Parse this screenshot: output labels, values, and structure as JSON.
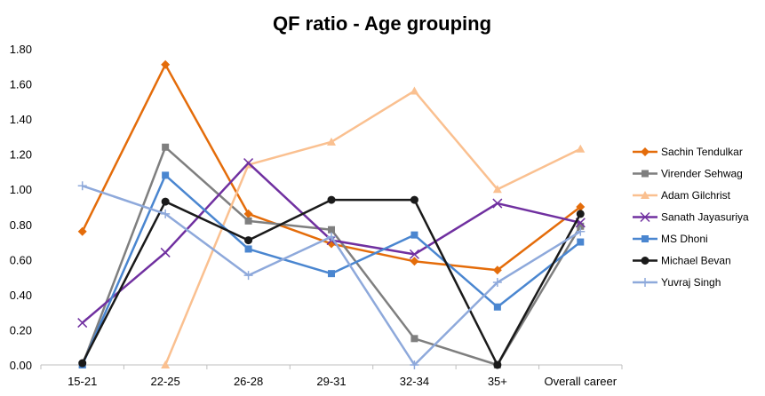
{
  "chart_data": {
    "type": "line",
    "title": "QF ratio - Age grouping",
    "xlabel": "",
    "ylabel": "",
    "ylim": [
      0,
      1.8
    ],
    "yticks": [
      "0.00",
      "0.20",
      "0.40",
      "0.60",
      "0.80",
      "1.00",
      "1.20",
      "1.40",
      "1.60",
      "1.80"
    ],
    "grid": false,
    "legend_position": "right",
    "categories": [
      "15-21",
      "22-25",
      "26-28",
      "29-31",
      "32-34",
      "35+",
      "Overall career"
    ],
    "series": [
      {
        "name": "Sachin Tendulkar",
        "color": "#E46C0A",
        "marker": "diamond",
        "values": [
          0.76,
          1.71,
          0.86,
          0.69,
          0.59,
          0.54,
          0.9
        ]
      },
      {
        "name": "Virender Sehwag",
        "color": "#7F7F7F",
        "marker": "square",
        "values": [
          0.0,
          1.24,
          0.82,
          0.77,
          0.15,
          0.0,
          0.79
        ]
      },
      {
        "name": "Adam Gilchrist",
        "color": "#FAC090",
        "marker": "triangle",
        "values": [
          null,
          0.0,
          1.14,
          1.27,
          1.56,
          1.0,
          1.23
        ]
      },
      {
        "name": "Sanath Jayasuriya",
        "color": "#7030A0",
        "marker": "x",
        "values": [
          0.24,
          0.64,
          1.15,
          0.71,
          0.63,
          0.92,
          0.81
        ]
      },
      {
        "name": "MS Dhoni",
        "color": "#4A86D0",
        "marker": "square",
        "values": [
          0.0,
          1.08,
          0.66,
          0.52,
          0.74,
          0.33,
          0.7
        ]
      },
      {
        "name": "Michael Bevan",
        "color": "#1A1A1A",
        "marker": "circle",
        "values": [
          0.01,
          0.93,
          0.71,
          0.94,
          0.94,
          0.0,
          0.86
        ]
      },
      {
        "name": "Yuvraj Singh",
        "color": "#8EA9DB",
        "marker": "plus",
        "values": [
          1.02,
          0.86,
          0.51,
          0.73,
          0.0,
          0.47,
          0.76
        ]
      }
    ]
  }
}
